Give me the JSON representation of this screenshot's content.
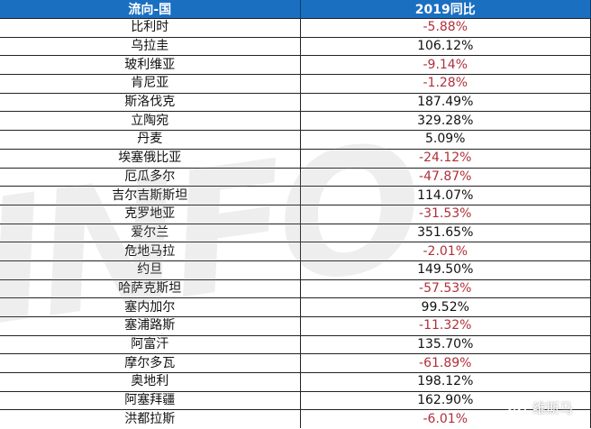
{
  "header": {
    "col1": "流向-国",
    "col2": "2019同比"
  },
  "rows": [
    {
      "country": "比利时",
      "yoy": "-5.88%"
    },
    {
      "country": "乌拉圭",
      "yoy": "106.12%"
    },
    {
      "country": "玻利维亚",
      "yoy": "-9.14%"
    },
    {
      "country": "肯尼亚",
      "yoy": "-1.28%"
    },
    {
      "country": "斯洛伐克",
      "yoy": "187.49%"
    },
    {
      "country": "立陶宛",
      "yoy": "329.28%"
    },
    {
      "country": "丹麦",
      "yoy": "5.09%"
    },
    {
      "country": "埃塞俄比亚",
      "yoy": "-24.12%"
    },
    {
      "country": "厄瓜多尔",
      "yoy": "-47.87%"
    },
    {
      "country": "吉尔吉斯斯坦",
      "yoy": "114.07%"
    },
    {
      "country": "克罗地亚",
      "yoy": "-31.53%"
    },
    {
      "country": "爱尔兰",
      "yoy": "351.65%"
    },
    {
      "country": "危地马拉",
      "yoy": "-2.01%"
    },
    {
      "country": "约旦",
      "yoy": "149.50%"
    },
    {
      "country": "哈萨克斯坦",
      "yoy": "-57.53%"
    },
    {
      "country": "塞内加尔",
      "yoy": "99.52%"
    },
    {
      "country": "塞浦路斯",
      "yoy": "-11.32%"
    },
    {
      "country": "阿富汗",
      "yoy": "135.70%"
    },
    {
      "country": "摩尔多瓦",
      "yoy": "-61.89%"
    },
    {
      "country": "奥地利",
      "yoy": "198.12%"
    },
    {
      "country": "阿塞拜疆",
      "yoy": "162.90%"
    },
    {
      "country": "洪都拉斯",
      "yoy": "-6.01%"
    }
  ],
  "watermark": "INFO",
  "brand_watermark": "维斯马",
  "colors": {
    "header_bg": "#1a6fc1",
    "negative": "#b0303a"
  }
}
